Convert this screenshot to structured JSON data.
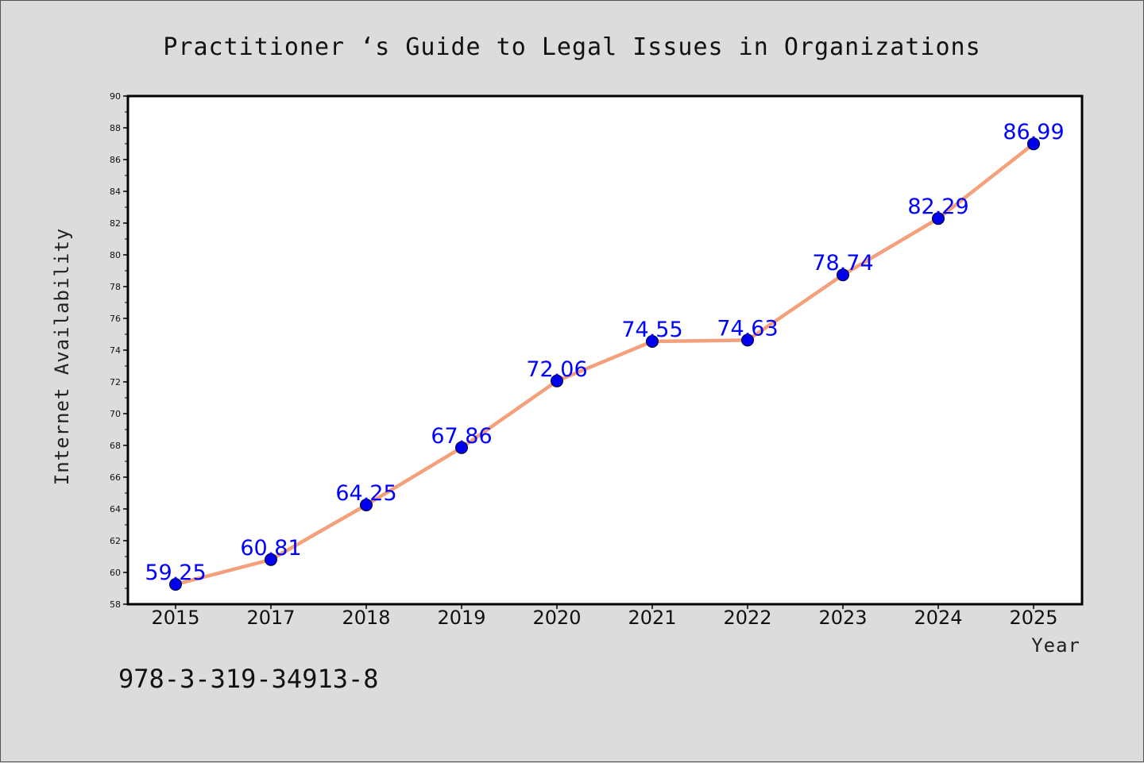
{
  "chart_data": {
    "type": "line",
    "title": "Practitioner ‘s Guide to Legal Issues in Organizations",
    "xlabel": "Year",
    "ylabel": "Internet Availability",
    "categories": [
      "2015",
      "2017",
      "2018",
      "2019",
      "2020",
      "2021",
      "2022",
      "2023",
      "2024",
      "2025"
    ],
    "values": [
      59.25,
      60.81,
      64.25,
      67.86,
      72.06,
      74.55,
      74.63,
      78.74,
      82.29,
      86.99
    ],
    "data_labels": [
      "59.25",
      "60.81",
      "64.25",
      "67.86",
      "72.06",
      "74.55",
      "74.63",
      "78.74",
      "82.29",
      "86.99"
    ],
    "ylim": [
      58,
      90
    ],
    "y_ticks": [
      58,
      60,
      62,
      64,
      66,
      68,
      70,
      72,
      74,
      76,
      78,
      80,
      82,
      84,
      86,
      88,
      90
    ],
    "grid": false,
    "legend": "none",
    "colors": {
      "line": "#f4a07a",
      "marker": "#0000ee",
      "data_label": "#0000ff",
      "background": "#dcdcdc",
      "plot_background": "#ffffff"
    }
  },
  "footer": {
    "isbn": "978-3-319-34913-8"
  }
}
